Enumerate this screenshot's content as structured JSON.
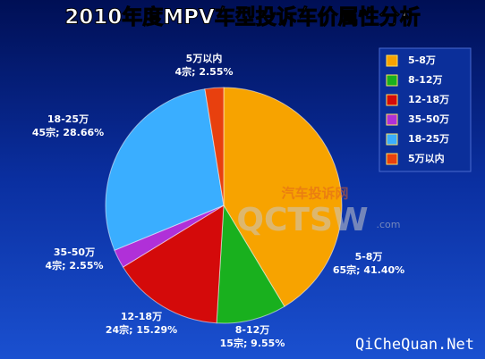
{
  "chart_data": {
    "type": "pie",
    "title": "2010年度MPV车型投诉车价属性分析",
    "categories": [
      "5-8万",
      "8-12万",
      "12-18万",
      "35-50万",
      "18-25万",
      "5万以内"
    ],
    "values": [
      65,
      15,
      24,
      4,
      45,
      4
    ],
    "value_labels": [
      "65宗; 41.40%",
      "15宗; 9.55%",
      "24宗; 15.29%",
      "4宗; 2.55%",
      "45宗; 28.66%",
      "4宗; 2.55%"
    ],
    "colors": [
      "#f7a300",
      "#19b01e",
      "#d40a0a",
      "#b030d8",
      "#3aaeff",
      "#e8400e"
    ],
    "legend": "right",
    "watermarks": [
      "汽车投诉网",
      "QCTSW",
      ".com",
      "QiCheQuan.Net"
    ]
  }
}
